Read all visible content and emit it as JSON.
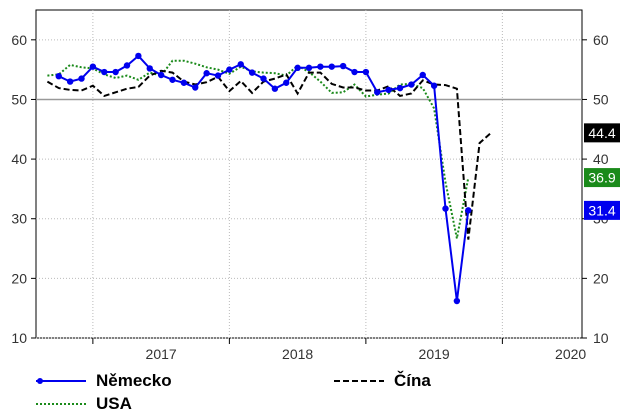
{
  "chart_data": {
    "type": "line",
    "title": "",
    "ylim": [
      10,
      65
    ],
    "y_ticks": [
      10,
      20,
      30,
      40,
      50,
      60
    ],
    "reference_line": 50,
    "x_range": [
      "2016-08",
      "2020-08"
    ],
    "year_labels": [
      "2017",
      "2018",
      "2019",
      "2020"
    ],
    "grid": true,
    "legend_position": "bottom",
    "series": [
      {
        "name": "Německo",
        "color": "#0000ee",
        "style": "solid-markers",
        "last_label": "31.4",
        "x": [
          "2016-10",
          "2016-11",
          "2016-12",
          "2017-01",
          "2017-02",
          "2017-03",
          "2017-04",
          "2017-05",
          "2017-06",
          "2017-07",
          "2017-08",
          "2017-09",
          "2017-10",
          "2017-11",
          "2017-12",
          "2018-01",
          "2018-02",
          "2018-03",
          "2018-04",
          "2018-05",
          "2018-06",
          "2018-07",
          "2018-08",
          "2018-09",
          "2018-10",
          "2018-11",
          "2018-12",
          "2019-01",
          "2019-02",
          "2019-03",
          "2019-04",
          "2019-05",
          "2019-06",
          "2019-07",
          "2019-08",
          "2019-09",
          "2019-10",
          "2019-11",
          "2019-12",
          "2020-01",
          "2020-02",
          "2020-03",
          "2020-04",
          "2020-05"
        ],
        "values": [
          53.9,
          53.0,
          53.5,
          55.5,
          54.6,
          54.6,
          55.7,
          57.3,
          55.2,
          54.1,
          53.3,
          52.8,
          52.0,
          54.4,
          54.0,
          55.0,
          55.9,
          54.5,
          53.5,
          51.8,
          52.8,
          55.3,
          55.3,
          55.5,
          55.5,
          55.6,
          54.6,
          54.6,
          51.2,
          51.6,
          51.9,
          52.5,
          54.1,
          52.3,
          31.7,
          16.2,
          31.4,
          null,
          null,
          null,
          null,
          null,
          null,
          null
        ]
      },
      {
        "name": "Čína",
        "color": "#000000",
        "style": "dashed",
        "last_label": "44.4",
        "x": [
          "2016-09",
          "2016-10",
          "2016-11",
          "2016-12",
          "2017-01",
          "2017-02",
          "2017-03",
          "2017-04",
          "2017-05",
          "2017-06",
          "2017-07",
          "2017-08",
          "2017-09",
          "2017-10",
          "2017-11",
          "2017-12",
          "2018-01",
          "2018-02",
          "2018-03",
          "2018-04",
          "2018-05",
          "2018-06",
          "2018-07",
          "2018-08",
          "2018-09",
          "2018-10",
          "2018-11",
          "2018-12",
          "2019-01",
          "2019-02",
          "2019-03",
          "2019-04",
          "2019-05",
          "2019-06",
          "2019-07",
          "2019-08",
          "2019-09",
          "2019-10",
          "2019-11",
          "2019-12",
          "2020-01",
          "2020-02",
          "2020-03",
          "2020-04",
          "2020-05"
        ],
        "values": [
          53.0,
          51.9,
          51.6,
          51.5,
          52.3,
          50.6,
          51.2,
          51.8,
          52.1,
          54.0,
          54.8,
          54.5,
          53.0,
          52.5,
          52.9,
          53.8,
          51.4,
          53.1,
          51.1,
          53.0,
          53.5,
          54.2,
          51.0,
          54.5,
          54.5,
          52.6,
          52.0,
          52.0,
          51.5,
          51.5,
          52.2,
          50.6,
          51.0,
          53.2,
          52.5,
          52.4,
          51.8,
          26.5,
          42.7,
          44.4,
          null,
          null,
          null,
          null,
          null
        ],
        "x_offset_months": 0
      },
      {
        "name": "USA",
        "color": "#1a8a1a",
        "style": "dotted",
        "last_label": "36.9",
        "x": [
          "2016-09",
          "2016-10",
          "2016-11",
          "2016-12",
          "2017-01",
          "2017-02",
          "2017-03",
          "2017-04",
          "2017-05",
          "2017-06",
          "2017-07",
          "2017-08",
          "2017-09",
          "2017-10",
          "2017-11",
          "2017-12",
          "2018-01",
          "2018-02",
          "2018-03",
          "2018-04",
          "2018-05",
          "2018-06",
          "2018-07",
          "2018-08",
          "2018-09",
          "2018-10",
          "2018-11",
          "2018-12",
          "2019-01",
          "2019-02",
          "2019-03",
          "2019-04",
          "2019-05",
          "2019-06",
          "2019-07",
          "2019-08",
          "2019-09",
          "2019-10",
          "2019-11",
          "2019-12",
          "2020-01",
          "2020-02",
          "2020-03",
          "2020-04",
          "2020-05"
        ],
        "values": [
          54.0,
          54.2,
          55.8,
          55.4,
          55.2,
          54.2,
          53.6,
          54.0,
          53.3,
          54.5,
          54.0,
          56.5,
          56.5,
          56.0,
          55.4,
          55.0,
          54.3,
          55.5,
          54.7,
          54.5,
          54.4,
          54.0,
          55.7,
          54.6,
          53.0,
          51.1,
          51.2,
          52.5,
          50.5,
          50.8,
          51.0,
          52.5,
          52.6,
          51.9,
          48.5,
          36.1,
          26.7,
          36.9,
          null,
          null,
          null,
          null,
          null,
          null,
          null
        ]
      }
    ]
  },
  "legend": {
    "items": [
      {
        "label": "Německo"
      },
      {
        "label": "Čína"
      },
      {
        "label": "USA"
      }
    ]
  }
}
